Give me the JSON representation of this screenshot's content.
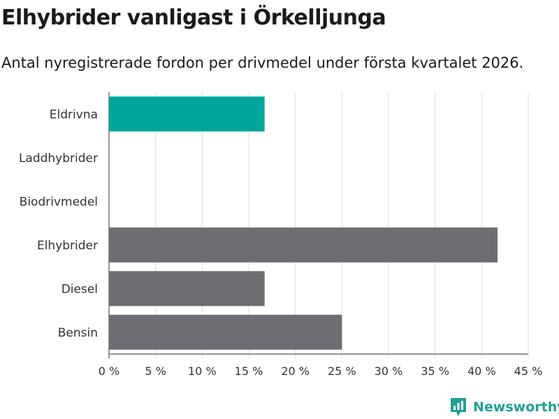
{
  "title": "Elhybrider vanligast i Örkelljunga",
  "subtitle": "Antal nyregistrerade fordon per drivmedel under första kvartalet 2026.",
  "brand": {
    "name": "Newsworthy",
    "color": "#22a095"
  },
  "colors": {
    "highlight": "#00a69c",
    "bar": "#6e6d74",
    "grid": "#dcdcdc",
    "axis": "#333333"
  },
  "chart_data": {
    "type": "bar",
    "orientation": "horizontal",
    "categories": [
      "Eldrivna",
      "Laddhybrider",
      "Biodrivmedel",
      "Elhybrider",
      "Diesel",
      "Bensin"
    ],
    "values": [
      16.7,
      0,
      0,
      41.7,
      16.7,
      25.0
    ],
    "highlight_category": "Eldrivna",
    "xlim": [
      0,
      45
    ],
    "xticks": [
      0,
      5,
      10,
      15,
      20,
      25,
      30,
      35,
      40,
      45
    ],
    "xtick_labels": [
      "0 %",
      "5 %",
      "10 %",
      "15 %",
      "20 %",
      "25 %",
      "30 %",
      "35 %",
      "40 %",
      "45 %"
    ],
    "unit": "%",
    "grid": true
  }
}
